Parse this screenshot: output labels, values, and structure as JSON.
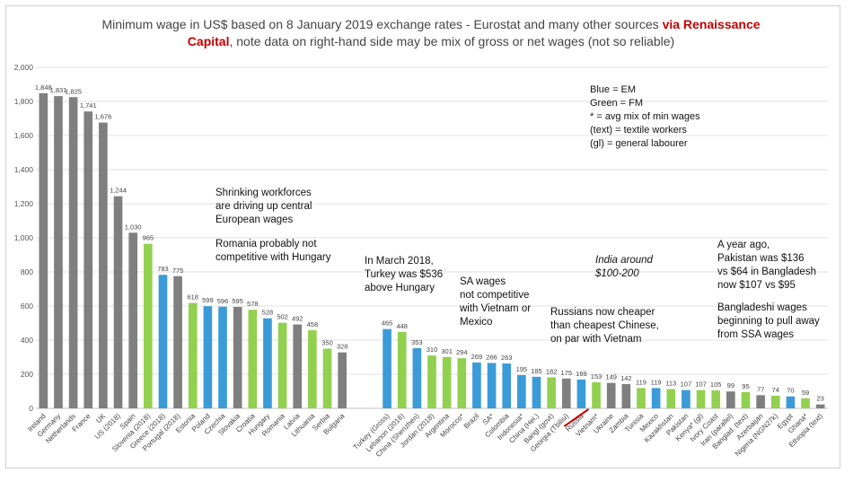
{
  "title": {
    "part1": "Minimum wage in US$ based on 8 January 2019 exchange rates - Eurostat and many other sources ",
    "red1": "via Renaissance",
    "red2": "Capital",
    "part2": ", note data on right-hand side may be mix of gross or net wages (not so reliable)"
  },
  "legend_text": {
    "l1": "Blue = EM",
    "l2": "Green = FM",
    "l3": "* = avg mix of min wages",
    "l4": "(text) = textile workers",
    "l5": "(gl) = general labourer"
  },
  "annotations": {
    "a1_1": "Shrinking workforces",
    "a1_2": "are driving up central",
    "a1_3": "European wages",
    "a1_4": "Romania probably not",
    "a1_5": "competitive with Hungary",
    "a2_1": "In March 2018,",
    "a2_2": "Turkey was $536",
    "a2_3": "above Hungary",
    "a3_1": "SA wages",
    "a3_2": "not competitive",
    "a3_3": "with Vietnam or",
    "a3_4": "Mexico",
    "a4_1": "India around",
    "a4_2": "$100-200",
    "a5_1": "Russians now cheaper",
    "a5_2": "than cheapest Chinese,",
    "a5_3": "on par with Vietnam",
    "a6_1": "A year ago,",
    "a6_2": "Pakistan was $136",
    "a6_3": "vs $64 in Bangladesh",
    "a6_4": "now $107 vs $95",
    "a6_5": "Bangladeshi wages",
    "a6_6": "beginning to pull away",
    "a6_7": "from SSA wages"
  },
  "colors": {
    "gray": "#7f7f7f",
    "green": "#92d050",
    "blue": "#3b9bd8",
    "red": "#c00000"
  },
  "chart_data": {
    "type": "bar",
    "ylim": [
      0,
      2000
    ],
    "yticks": [
      0,
      200,
      400,
      600,
      800,
      1000,
      1200,
      1400,
      1600,
      1800,
      2000
    ],
    "ytick_labels": [
      "0",
      "200",
      "400",
      "600",
      "800",
      "1,000",
      "1,200",
      "1,400",
      "1,600",
      "1,800",
      "2,000"
    ],
    "grid": true,
    "bars": [
      {
        "label": "Ireland",
        "value": 1848,
        "text": "1,848",
        "color": "gray"
      },
      {
        "label": "Germany",
        "value": 1831,
        "text": "1,831",
        "color": "gray"
      },
      {
        "label": "Netherlands",
        "value": 1825,
        "text": "1,825",
        "color": "gray"
      },
      {
        "label": "France",
        "value": 1741,
        "text": "1,741",
        "color": "gray"
      },
      {
        "label": "UK",
        "value": 1676,
        "text": "1,676",
        "color": "gray"
      },
      {
        "label": "US (2018)",
        "value": 1244,
        "text": "1,244",
        "color": "gray"
      },
      {
        "label": "Spain",
        "value": 1030,
        "text": "1,030",
        "color": "gray"
      },
      {
        "label": "Slovenia (2018)",
        "value": 965,
        "text": "965",
        "color": "green"
      },
      {
        "label": "Greece (2018)",
        "value": 783,
        "text": "783",
        "color": "blue"
      },
      {
        "label": "Portugal (2018)",
        "value": 775,
        "text": "775",
        "color": "gray"
      },
      {
        "label": "Estonia",
        "value": 618,
        "text": "618",
        "color": "green"
      },
      {
        "label": "Poland",
        "value": 599,
        "text": "599",
        "color": "blue"
      },
      {
        "label": "Czechia",
        "value": 596,
        "text": "596",
        "color": "blue"
      },
      {
        "label": "Slovakia",
        "value": 595,
        "text": "595",
        "color": "gray"
      },
      {
        "label": "Croatia",
        "value": 578,
        "text": "578",
        "color": "green"
      },
      {
        "label": "Hungary",
        "value": 528,
        "text": "528",
        "color": "blue"
      },
      {
        "label": "Romania",
        "value": 502,
        "text": "502",
        "color": "green"
      },
      {
        "label": "Latvia",
        "value": 492,
        "text": "492",
        "color": "gray"
      },
      {
        "label": "Lithuania",
        "value": 458,
        "text": "458",
        "color": "green"
      },
      {
        "label": "Serbia",
        "value": 350,
        "text": "350",
        "color": "green"
      },
      {
        "label": "Bulgaria",
        "value": 328,
        "text": "328",
        "color": "gray"
      },
      {
        "label": "",
        "value": 0,
        "text": "",
        "color": "gray"
      },
      {
        "label": "",
        "value": 0,
        "text": "",
        "color": "gray"
      },
      {
        "label": "Turkey (Gross)",
        "value": 465,
        "text": "465",
        "color": "blue"
      },
      {
        "label": "Lebanon (2018)",
        "value": 448,
        "text": "448",
        "color": "green"
      },
      {
        "label": "China (Shenzhen)",
        "value": 353,
        "text": "353",
        "color": "blue"
      },
      {
        "label": "Jordan (2018)",
        "value": 310,
        "text": "310",
        "color": "green"
      },
      {
        "label": "Argentina",
        "value": 301,
        "text": "301",
        "color": "green"
      },
      {
        "label": "Morocco*",
        "value": 294,
        "text": "294",
        "color": "green"
      },
      {
        "label": "Brazil",
        "value": 269,
        "text": "269",
        "color": "blue"
      },
      {
        "label": "SA*",
        "value": 266,
        "text": "266",
        "color": "blue"
      },
      {
        "label": "Colombia",
        "value": 263,
        "text": "263",
        "color": "blue"
      },
      {
        "label": "Indonesia*",
        "value": 195,
        "text": "195",
        "color": "blue"
      },
      {
        "label": "China (Hei.)",
        "value": 185,
        "text": "185",
        "color": "blue"
      },
      {
        "label": "Bangl (govt)",
        "value": 182,
        "text": "182",
        "color": "green"
      },
      {
        "label": "Georgia (Tbilisi)",
        "value": 175,
        "text": "175",
        "color": "gray"
      },
      {
        "label": "Russia",
        "value": 169,
        "text": "169",
        "color": "blue"
      },
      {
        "label": "Vietnam*",
        "value": 153,
        "text": "153",
        "color": "green"
      },
      {
        "label": "Ukraine",
        "value": 149,
        "text": "149",
        "color": "gray"
      },
      {
        "label": "Zambia",
        "value": 142,
        "text": "142",
        "color": "gray"
      },
      {
        "label": "Tunisia",
        "value": 119,
        "text": "119",
        "color": "green"
      },
      {
        "label": "Mexico",
        "value": 119,
        "text": "119",
        "color": "blue"
      },
      {
        "label": "Kazakhstan",
        "value": 113,
        "text": "113",
        "color": "green"
      },
      {
        "label": "Pakistan",
        "value": 107,
        "text": "107",
        "color": "blue"
      },
      {
        "label": "Kenya* (gl)",
        "value": 107,
        "text": "107",
        "color": "green"
      },
      {
        "label": "Ivory Coast",
        "value": 105,
        "text": "105",
        "color": "green"
      },
      {
        "label": "Iran (parallel)",
        "value": 99,
        "text": "99",
        "color": "gray"
      },
      {
        "label": "Banglad. (text)",
        "value": 95,
        "text": "95",
        "color": "green"
      },
      {
        "label": "Azerbaijan",
        "value": 77,
        "text": "77",
        "color": "gray"
      },
      {
        "label": "Nigeria (NGN27k)",
        "value": 74,
        "text": "74",
        "color": "green"
      },
      {
        "label": "Egypt",
        "value": 70,
        "text": "70",
        "color": "blue"
      },
      {
        "label": "Ghana*",
        "value": 59,
        "text": "59",
        "color": "green"
      },
      {
        "label": "Ethiopia (text)",
        "value": 23,
        "text": "23",
        "color": "gray"
      }
    ],
    "struck_label": "Russia"
  }
}
